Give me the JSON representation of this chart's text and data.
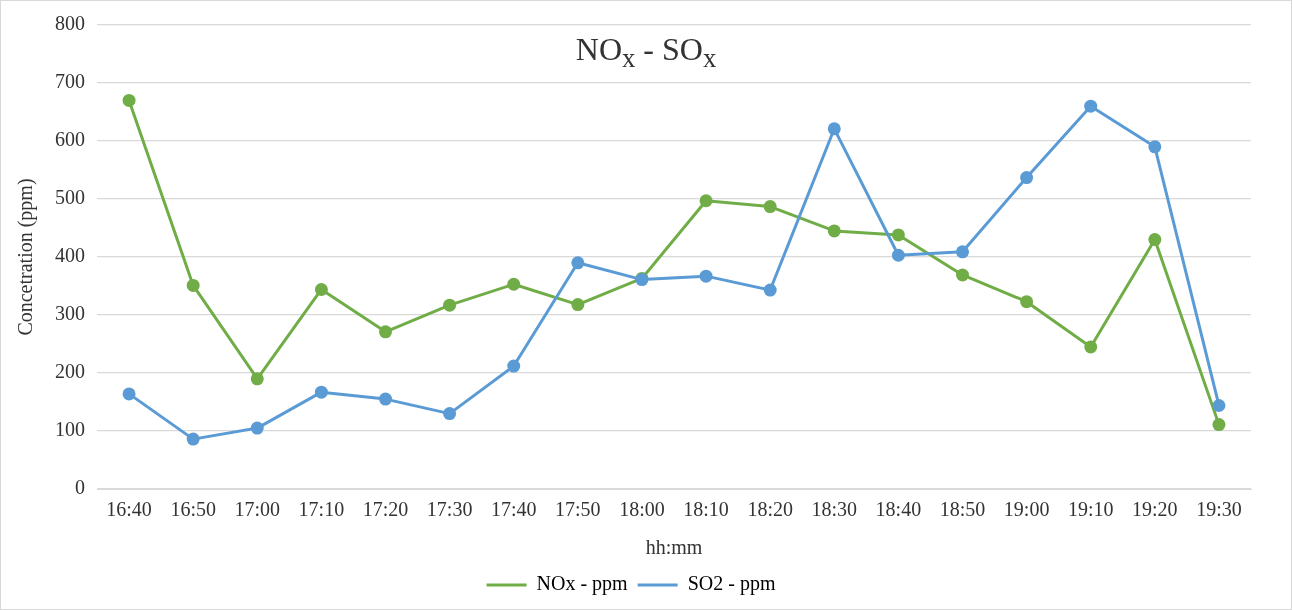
{
  "chart_data": {
    "type": "line",
    "title": "NO$_{x}$ - SO$_{x}$",
    "xlabel": "hh:mm",
    "ylabel": "Concetration (ppm)",
    "categories": [
      "16:40",
      "16:50",
      "17:00",
      "17:10",
      "17:20",
      "17:30",
      "17:40",
      "17:50",
      "18:00",
      "18:10",
      "18:20",
      "18:30",
      "18:40",
      "18:50",
      "19:00",
      "19:10",
      "19:20",
      "19:30"
    ],
    "series": [
      {
        "name": "NOx - ppm",
        "color": "#70ad47",
        "values": [
          670,
          351,
          190,
          344,
          271,
          317,
          353,
          318,
          363,
          497,
          487,
          445,
          438,
          369,
          323,
          245,
          430,
          111
        ]
      },
      {
        "name": "SO2 - ppm",
        "color": "#5b9bd5",
        "values": [
          164,
          86,
          105,
          167,
          155,
          130,
          212,
          390,
          361,
          367,
          343,
          621,
          403,
          409,
          537,
          660,
          590,
          144
        ]
      }
    ],
    "ylim": [
      0,
      800
    ],
    "yticks": [
      0,
      100,
      200,
      300,
      400,
      500,
      600,
      700,
      800
    ],
    "grid": "y",
    "legend": "bottom",
    "marker": "circle",
    "line_style": "solid"
  }
}
